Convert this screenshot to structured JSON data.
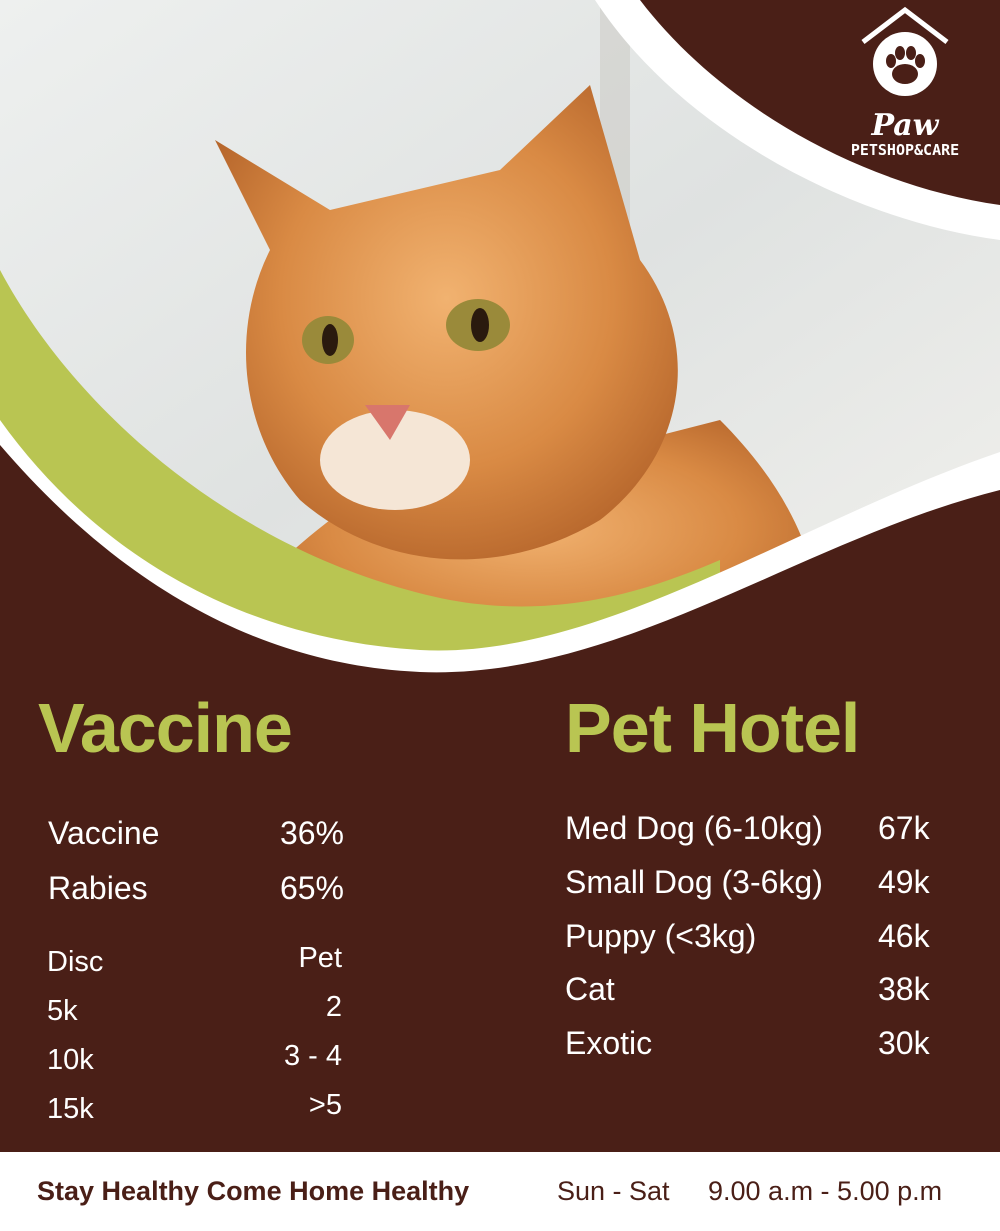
{
  "logo": {
    "brand": "Paw",
    "tagline": "PETSHOP&CARE"
  },
  "colors": {
    "brown": "#4a1f17",
    "green": "#b9c552",
    "white": "#ffffff"
  },
  "vaccine": {
    "title": "Vaccine",
    "prices": [
      {
        "label": "Vaccine",
        "value": "36%"
      },
      {
        "label": "Rabies",
        "value": "65%"
      }
    ],
    "discount_headers": {
      "disc": "Disc",
      "pet": "Pet"
    },
    "discounts": [
      {
        "disc": "5k",
        "pet": "2"
      },
      {
        "disc": "10k",
        "pet": "3 - 4"
      },
      {
        "disc": "15k",
        "pet": ">5"
      }
    ]
  },
  "hotel": {
    "title": "Pet Hotel",
    "items": [
      {
        "label": "Med Dog (6-10kg)",
        "price": "67k"
      },
      {
        "label": "Small Dog (3-6kg)",
        "price": "49k"
      },
      {
        "label": "Puppy (<3kg)",
        "price": "46k"
      },
      {
        "label": "Cat",
        "price": "38k"
      },
      {
        "label": "Exotic",
        "price": "30k"
      }
    ]
  },
  "footer": {
    "slogan": "Stay Healthy Come Home Healthy",
    "days": "Sun - Sat",
    "hours": "9.00 a.m - 5.00 p.m"
  }
}
